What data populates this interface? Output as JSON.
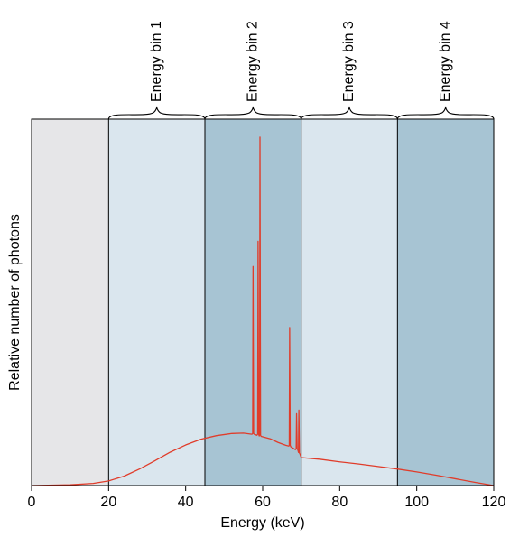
{
  "chart_data": {
    "type": "line",
    "title": "",
    "xlabel": "Energy (keV)",
    "ylabel": "Relative number of photons",
    "xlim": [
      0,
      120
    ],
    "ylim": [
      0,
      1
    ],
    "x_ticks": [
      0,
      20,
      40,
      60,
      80,
      100,
      120
    ],
    "y_ticks": [],
    "grid": false,
    "legend": "none",
    "energy_bins": [
      {
        "label": "",
        "range": [
          0,
          20
        ],
        "color": "#e6e6e8"
      },
      {
        "label": "Energy bin 1",
        "range": [
          20,
          45
        ],
        "color": "#dae6ee"
      },
      {
        "label": "Energy bin 2",
        "range": [
          45,
          70
        ],
        "color": "#a7c4d3"
      },
      {
        "label": "Energy bin 3",
        "range": [
          70,
          95
        ],
        "color": "#dae6ee"
      },
      {
        "label": "Energy bin 4",
        "range": [
          95,
          120
        ],
        "color": "#a7c4d3"
      }
    ],
    "series": [
      {
        "color": "#e03c2a",
        "points": [
          [
            0,
            0.0
          ],
          [
            10,
            0.002
          ],
          [
            16,
            0.006
          ],
          [
            20,
            0.013
          ],
          [
            24,
            0.026
          ],
          [
            28,
            0.046
          ],
          [
            32,
            0.069
          ],
          [
            36,
            0.093
          ],
          [
            40,
            0.113
          ],
          [
            44,
            0.129
          ],
          [
            48,
            0.139
          ],
          [
            52,
            0.145
          ],
          [
            55,
            0.146
          ],
          [
            57.2,
            0.143
          ],
          [
            57.4,
            0.145
          ],
          [
            57.5,
            0.61
          ],
          [
            57.65,
            0.145
          ],
          [
            57.8,
            0.143
          ],
          [
            58.5,
            0.14
          ],
          [
            58.7,
            0.143
          ],
          [
            58.8,
            0.68
          ],
          [
            58.95,
            0.143
          ],
          [
            59.1,
            0.138
          ],
          [
            59.2,
            0.14
          ],
          [
            59.3,
            0.97
          ],
          [
            59.45,
            0.14
          ],
          [
            59.6,
            0.137
          ],
          [
            62,
            0.13
          ],
          [
            64,
            0.12
          ],
          [
            66,
            0.112
          ],
          [
            66.8,
            0.11
          ],
          [
            66.9,
            0.112
          ],
          [
            67.0,
            0.44
          ],
          [
            67.15,
            0.112
          ],
          [
            67.3,
            0.108
          ],
          [
            68.5,
            0.1
          ],
          [
            68.7,
            0.102
          ],
          [
            68.8,
            0.2
          ],
          [
            68.95,
            0.102
          ],
          [
            69.1,
            0.1
          ],
          [
            69.3,
            0.092
          ],
          [
            69.4,
            0.21
          ],
          [
            69.55,
            0.09
          ],
          [
            69.6,
            0.09
          ],
          [
            70,
            0.078
          ],
          [
            75,
            0.073
          ],
          [
            80,
            0.066
          ],
          [
            85,
            0.06
          ],
          [
            90,
            0.053
          ],
          [
            95,
            0.046
          ],
          [
            100,
            0.038
          ],
          [
            105,
            0.029
          ],
          [
            110,
            0.019
          ],
          [
            115,
            0.009
          ],
          [
            120,
            0.0
          ]
        ]
      }
    ]
  }
}
